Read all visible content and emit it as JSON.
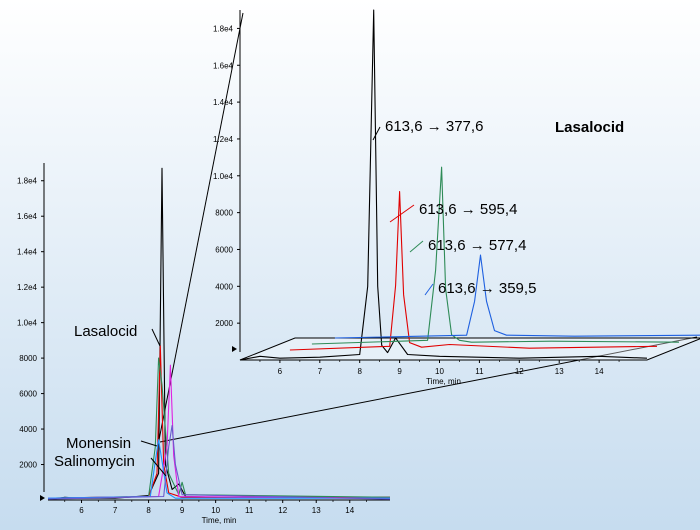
{
  "chart_data": [
    {
      "type": "line",
      "panel": "overview",
      "xlabel": "Time, min",
      "xlim": [
        5,
        15.2
      ],
      "ylim": [
        0,
        19000
      ],
      "x_ticks": [
        6,
        7,
        8,
        9,
        10,
        11,
        12,
        13,
        14
      ],
      "y_ticks": [
        2000,
        4000,
        6000,
        8000,
        10000,
        12000,
        14000,
        16000,
        18000
      ],
      "y_tick_labels": [
        "2000",
        "4000",
        "6000",
        "8000",
        "1.0e4",
        "1.2e4",
        "1.4e4",
        "1.6e4",
        "1.8e4"
      ],
      "series": [
        {
          "color": "#000000",
          "x": [
            5.0,
            5.5,
            5.9,
            7.0,
            8.0,
            8.3,
            8.4,
            8.5,
            8.7,
            8.9,
            9.1,
            10.0,
            12.0,
            15.2
          ],
          "values": [
            0,
            150,
            100,
            100,
            250,
            1500,
            18700,
            2000,
            600,
            900,
            200,
            150,
            150,
            150
          ]
        },
        {
          "color": "#e00000",
          "x": [
            5.0,
            8.0,
            8.25,
            8.35,
            8.45,
            8.6,
            9.0,
            15.2
          ],
          "values": [
            100,
            200,
            1500,
            8700,
            2000,
            400,
            150,
            150
          ]
        },
        {
          "color": "#2e8b57",
          "x": [
            5.0,
            8.0,
            8.2,
            8.3,
            8.4,
            8.5,
            8.6,
            8.9,
            9.0,
            9.1,
            15.2
          ],
          "values": [
            100,
            200,
            3000,
            8000,
            6500,
            4000,
            1500,
            300,
            1000,
            300,
            150
          ]
        },
        {
          "color": "#e020e0",
          "x": [
            5.0,
            8.3,
            8.55,
            8.65,
            8.75,
            8.9,
            15.2
          ],
          "values": [
            100,
            200,
            3000,
            7600,
            2500,
            200,
            100
          ]
        },
        {
          "color": "#1e90ff",
          "x": [
            5.0,
            8.05,
            8.2,
            8.3,
            8.4,
            8.55,
            8.8,
            15.2
          ],
          "values": [
            100,
            200,
            2200,
            3400,
            2200,
            400,
            100,
            100
          ]
        },
        {
          "color": "#6a5acd",
          "x": [
            5.0,
            8.45,
            8.6,
            8.7,
            8.8,
            9.0,
            15.2
          ],
          "values": [
            50,
            200,
            3000,
            4200,
            2000,
            300,
            50
          ]
        }
      ],
      "annotations": [
        "Lasalocid",
        "Salinomycin",
        "Monensin"
      ]
    },
    {
      "type": "line",
      "panel": "inset",
      "title": "Lasalocid",
      "xlabel": "Time, min",
      "xlim": [
        5,
        15.2
      ],
      "ylim": [
        0,
        19000
      ],
      "x_ticks": [
        6,
        7,
        8,
        9,
        10,
        11,
        12,
        13,
        14
      ],
      "y_ticks": [
        2000,
        4000,
        6000,
        8000,
        10000,
        12000,
        14000,
        16000,
        18000
      ],
      "y_tick_labels": [
        "2000",
        "4000",
        "6000",
        "8000",
        "1.0e4",
        "1.2e4",
        "1.4e4",
        "1.6e4",
        "1.8e4"
      ],
      "series": [
        {
          "name": "613,6 → 377,6",
          "color": "#000000",
          "x": [
            5.0,
            5.5,
            6.0,
            7.0,
            8.0,
            8.2,
            8.35,
            8.45,
            8.55,
            8.7,
            8.9,
            9.2,
            10.0,
            12.0,
            14.0,
            15.2
          ],
          "values": [
            0,
            200,
            100,
            150,
            300,
            4000,
            19000,
            4000,
            800,
            400,
            1200,
            300,
            200,
            100,
            200,
            100
          ]
        },
        {
          "name": "613,6 → 595,4",
          "color": "#e00000",
          "x": [
            6.0,
            8.5,
            8.65,
            8.75,
            8.85,
            9.0,
            9.3,
            10.0,
            12.0,
            15.2
          ],
          "values": [
            0,
            200,
            3500,
            8600,
            3000,
            400,
            150,
            300,
            100,
            200
          ]
        },
        {
          "name": "613,6 → 577,4",
          "color": "#2e8b57",
          "x": [
            6.0,
            8.9,
            9.1,
            9.25,
            9.35,
            9.5,
            9.7,
            10.0,
            12.0,
            15.2
          ],
          "values": [
            0,
            200,
            4000,
            9600,
            3000,
            500,
            200,
            100,
            150,
            100
          ]
        },
        {
          "name": "613,6 → 359,5",
          "color": "#1e60e0",
          "x": [
            6.0,
            9.3,
            9.5,
            9.65,
            9.8,
            10.0,
            10.3,
            12.0,
            15.2
          ],
          "values": [
            0,
            150,
            2000,
            4500,
            2000,
            400,
            150,
            100,
            150
          ]
        }
      ]
    }
  ]
}
